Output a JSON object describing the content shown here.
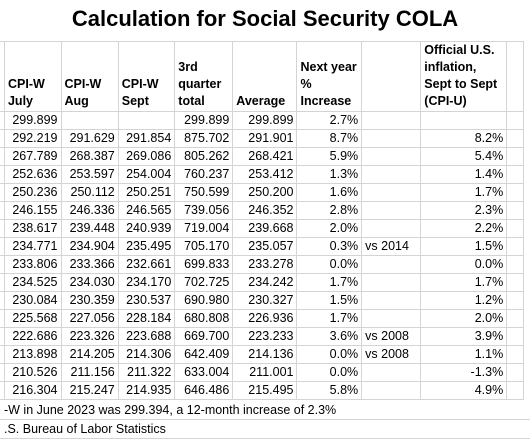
{
  "title": "Calculation for Social Security COLA",
  "headers": {
    "cpiw_july": "CPI-W July",
    "cpiw_aug": "CPI-W Aug",
    "cpiw_sept": "CPI-W Sept",
    "q3_total": "3rd quarter total",
    "average": "Average",
    "next_year": "Next year % Increase",
    "note": "",
    "official": "Official U.S. inflation, Sept to Sept (CPI-U)"
  },
  "first_row": {
    "july": "299.899",
    "aug": "",
    "sept": "",
    "total": "299.899",
    "avg": "299.899",
    "pct": "2.7%",
    "note": "",
    "official": ""
  },
  "rows": [
    [
      "292.219",
      "291.629",
      "291.854",
      "875.702",
      "291.901",
      "8.7%",
      "",
      "8.2%"
    ],
    [
      "267.789",
      "268.387",
      "269.086",
      "805.262",
      "268.421",
      "5.9%",
      "",
      "5.4%"
    ],
    [
      "252.636",
      "253.597",
      "254.004",
      "760.237",
      "253.412",
      "1.3%",
      "",
      "1.4%"
    ],
    [
      "250.236",
      "250.112",
      "250.251",
      "750.599",
      "250.200",
      "1.6%",
      "",
      "1.7%"
    ],
    [
      "246.155",
      "246.336",
      "246.565",
      "739.056",
      "246.352",
      "2.8%",
      "",
      "2.3%"
    ],
    [
      "238.617",
      "239.448",
      "240.939",
      "719.004",
      "239.668",
      "2.0%",
      "",
      "2.2%"
    ],
    [
      "234.771",
      "234.904",
      "235.495",
      "705.170",
      "235.057",
      "0.3%",
      "vs 2014",
      "1.5%"
    ],
    [
      "233.806",
      "233.366",
      "232.661",
      "699.833",
      "233.278",
      "0.0%",
      "",
      "0.0%"
    ],
    [
      "234.525",
      "234.030",
      "234.170",
      "702.725",
      "234.242",
      "1.7%",
      "",
      "1.7%"
    ],
    [
      "230.084",
      "230.359",
      "230.537",
      "690.980",
      "230.327",
      "1.5%",
      "",
      "1.2%"
    ],
    [
      "225.568",
      "227.056",
      "228.184",
      "680.808",
      "226.936",
      "1.7%",
      "",
      "2.0%"
    ],
    [
      "222.686",
      "223.326",
      "223.688",
      "669.700",
      "223.233",
      "3.6%",
      "vs 2008",
      "3.9%"
    ],
    [
      "213.898",
      "214.205",
      "214.306",
      "642.409",
      "214.136",
      "0.0%",
      "vs 2008",
      "1.1%"
    ],
    [
      "210.526",
      "211.156",
      "211.322",
      "633.004",
      "211.001",
      "0.0%",
      "",
      "-1.3%"
    ],
    [
      "216.304",
      "215.247",
      "214.935",
      "646.486",
      "215.495",
      "5.8%",
      "",
      "4.9%"
    ]
  ],
  "notes": [
    "-W in June 2023 was 299.394, a 12-month increase of 2.3%",
    ".S. Bureau of Labor Statistics"
  ]
}
